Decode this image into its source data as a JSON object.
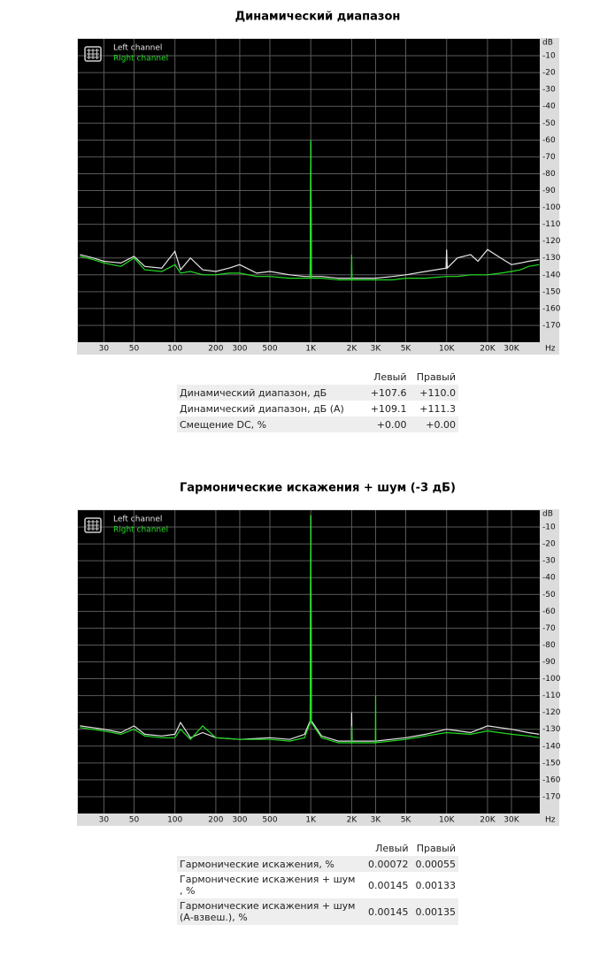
{
  "chart_data": [
    {
      "type": "line",
      "title": "Динамический диапазон",
      "x_label": "Hz",
      "y_label": "dB",
      "log_x": true,
      "grid": true,
      "legend": "upper left",
      "xlim": [
        19.3,
        48500
      ],
      "ylim": [
        -180,
        0
      ],
      "xticks": [
        30,
        50,
        100,
        200,
        300,
        500,
        {
          "value": 1000,
          "label": "1K"
        },
        {
          "value": 2000,
          "label": "2K"
        },
        {
          "value": 3000,
          "label": "3K"
        },
        {
          "value": 5000,
          "label": "5K"
        },
        {
          "value": 10000,
          "label": "10K"
        },
        {
          "value": 20000,
          "label": "20K"
        },
        {
          "value": 30000,
          "label": "30K"
        }
      ],
      "yticks": [
        -10,
        -20,
        -30,
        -40,
        -50,
        -60,
        -70,
        -80,
        -90,
        -100,
        -110,
        -120,
        -130,
        -140,
        -150,
        -160,
        -170
      ],
      "x": [
        20,
        25,
        30,
        40,
        50,
        60,
        80,
        100,
        110,
        130,
        160,
        200,
        250,
        300,
        400,
        500,
        700,
        900,
        990,
        1000,
        1010,
        1200,
        1600,
        1990,
        2000,
        2010,
        3000,
        4000,
        5000,
        7000,
        9900,
        10000,
        10100,
        12000,
        15000,
        17000,
        20000,
        25000,
        30000,
        35000,
        40000,
        48000
      ],
      "series": [
        {
          "name": "Left channel",
          "color": "#e6e6e6",
          "values": [
            -128,
            -130,
            -132,
            -133,
            -129,
            -135,
            -136,
            -126,
            -137,
            -130,
            -137,
            -138,
            -136,
            -134,
            -139,
            -138,
            -140,
            -141,
            -141,
            -61,
            -141,
            -141,
            -142,
            -142,
            -142,
            -142,
            -142,
            -141,
            -140,
            -138,
            -136,
            -125,
            -136,
            -130,
            -128,
            -132,
            -125,
            -130,
            -134,
            -133,
            -132,
            -131
          ]
        },
        {
          "name": "Right channel",
          "color": "#22dd22",
          "values": [
            -129,
            -131,
            -133,
            -135,
            -130,
            -137,
            -138,
            -134,
            -139,
            -138,
            -140,
            -140,
            -139,
            -139,
            -141,
            -141,
            -142,
            -142,
            -142,
            -60,
            -142,
            -142,
            -143,
            -143,
            -128,
            -143,
            -143,
            -143,
            -142,
            -142,
            -141,
            -141,
            -141,
            -141,
            -140,
            -140,
            -140,
            -139,
            -138,
            -137,
            -135,
            -134
          ]
        }
      ]
    },
    {
      "type": "line",
      "title": "Гармонические искажения + шум (-3 дБ)",
      "x_label": "Hz",
      "y_label": "dB",
      "log_x": true,
      "grid": true,
      "legend": "upper left",
      "xlim": [
        19.3,
        48500
      ],
      "ylim": [
        -180,
        0
      ],
      "xticks": [
        30,
        50,
        100,
        200,
        300,
        500,
        {
          "value": 1000,
          "label": "1K"
        },
        {
          "value": 2000,
          "label": "2K"
        },
        {
          "value": 3000,
          "label": "3K"
        },
        {
          "value": 5000,
          "label": "5K"
        },
        {
          "value": 10000,
          "label": "10K"
        },
        {
          "value": 20000,
          "label": "20K"
        },
        {
          "value": 30000,
          "label": "30K"
        }
      ],
      "yticks": [
        -10,
        -20,
        -30,
        -40,
        -50,
        -60,
        -70,
        -80,
        -90,
        -100,
        -110,
        -120,
        -130,
        -140,
        -150,
        -160,
        -170
      ],
      "x": [
        20,
        30,
        40,
        50,
        60,
        80,
        100,
        110,
        130,
        160,
        200,
        300,
        500,
        700,
        900,
        990,
        1000,
        1010,
        1200,
        1600,
        1990,
        2000,
        2010,
        2990,
        3000,
        3010,
        5000,
        7000,
        10000,
        15000,
        20000,
        30000,
        40000,
        48000
      ],
      "series": [
        {
          "name": "Left channel",
          "color": "#e6e6e6",
          "values": [
            -128,
            -130,
            -132,
            -128,
            -133,
            -134,
            -133,
            -126,
            -135,
            -132,
            -135,
            -136,
            -135,
            -136,
            -133,
            -125,
            -3,
            -125,
            -134,
            -137,
            -137,
            -120,
            -137,
            -137,
            -137,
            -137,
            -135,
            -133,
            -130,
            -132,
            -128,
            -130,
            -132,
            -133
          ]
        },
        {
          "name": "Right channel",
          "color": "#22dd22",
          "values": [
            -129,
            -131,
            -133,
            -130,
            -134,
            -135,
            -135,
            -130,
            -136,
            -128,
            -135,
            -136,
            -136,
            -137,
            -135,
            -126,
            -3,
            -126,
            -135,
            -138,
            -138,
            -128,
            -138,
            -138,
            -110,
            -138,
            -136,
            -134,
            -132,
            -133,
            -131,
            -133,
            -134,
            -135
          ]
        }
      ]
    }
  ],
  "tables": [
    {
      "columns": [
        "Левый",
        "Правый"
      ],
      "rows": [
        [
          "Динамический диапазон, дБ",
          "+107.6",
          "+110.0"
        ],
        [
          "Динамический диапазон, дБ (A)",
          "+109.1",
          "+111.3"
        ],
        [
          "Смещение DC, %",
          "+0.00",
          "+0.00"
        ]
      ]
    },
    {
      "columns": [
        "Левый",
        "Правый"
      ],
      "rows": [
        [
          "Гармонические искажения, %",
          "0.00072",
          "0.00055"
        ],
        [
          "Гармонические искажения + шум , %",
          "0.00145",
          "0.00133"
        ],
        [
          "Гармонические искажения + шум (А-взвеш.), %",
          "0.00145",
          "0.00135"
        ]
      ]
    }
  ]
}
